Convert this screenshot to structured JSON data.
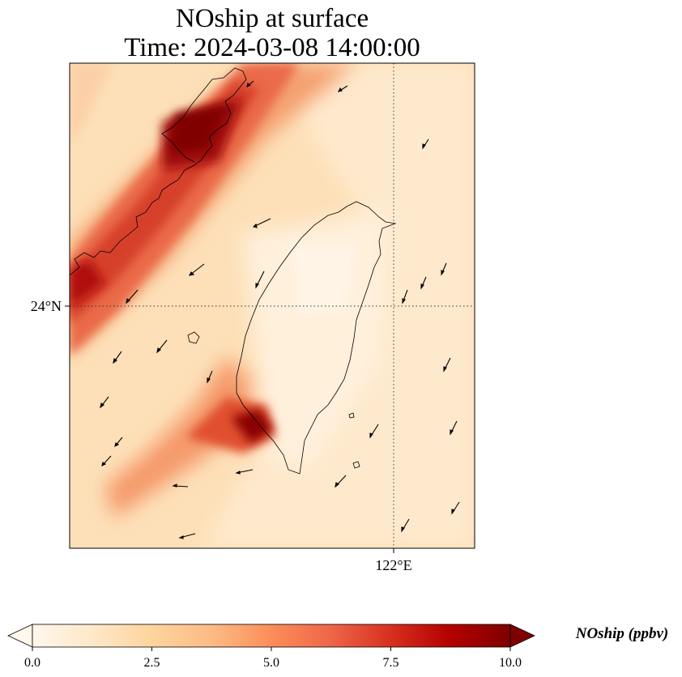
{
  "title": {
    "line1": "NOship at surface",
    "line2": "Time: 2024-03-08 14:00:00"
  },
  "map": {
    "gridlines": {
      "lat_label": "24°N",
      "lon_label": "122°E",
      "style": "dotted"
    },
    "colormap": "OrRd",
    "wind_vectors": "shown"
  },
  "colorbar": {
    "label": "NOship (ppbv)",
    "ticks": [
      "0.0",
      "2.5",
      "5.0",
      "7.5",
      "10.0"
    ],
    "min": 0,
    "max": 10,
    "extend": "both",
    "colors": [
      "#fff7ec",
      "#fee8c8",
      "#fdd49e",
      "#fdbb84",
      "#fc8d59",
      "#ef6548",
      "#d7301f",
      "#b30000",
      "#7f0000"
    ]
  }
}
